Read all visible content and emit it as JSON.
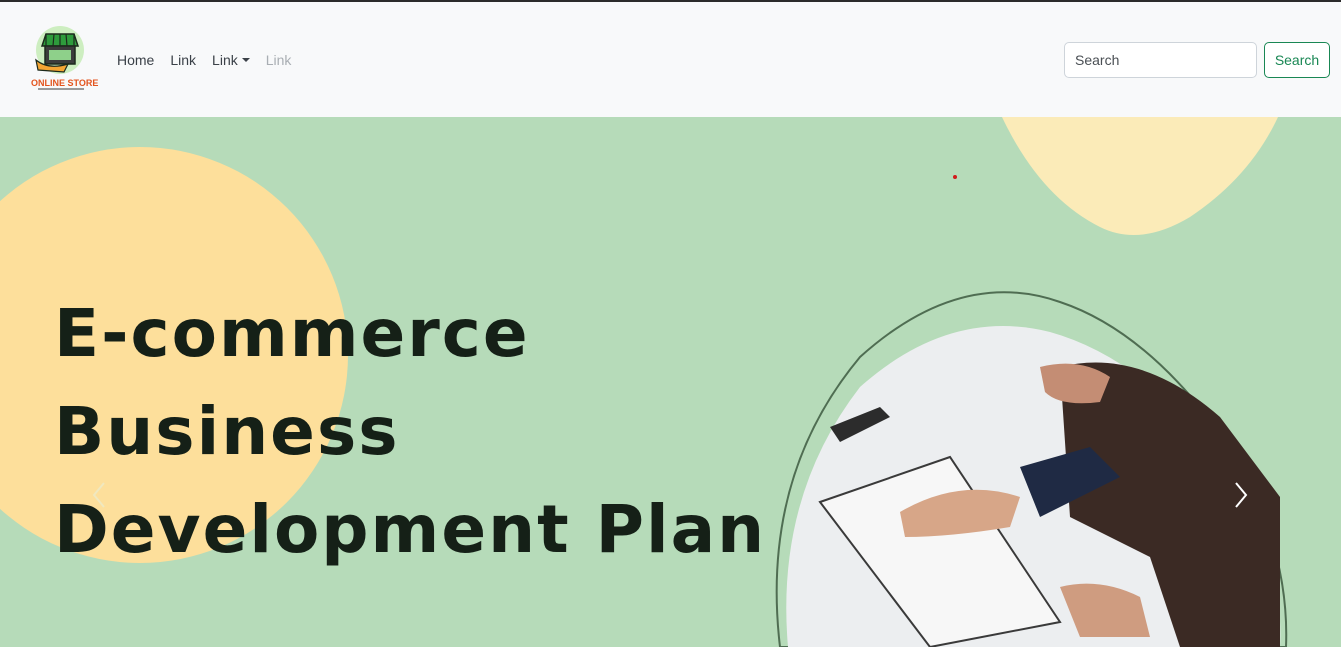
{
  "brand": {
    "name": "ONLINE STORE",
    "logo_icon": "storefront-icon"
  },
  "nav": {
    "items": [
      {
        "label": "Home",
        "state": "normal"
      },
      {
        "label": "Link",
        "state": "normal"
      },
      {
        "label": "Link",
        "state": "dropdown"
      },
      {
        "label": "Link",
        "state": "disabled"
      }
    ]
  },
  "search": {
    "placeholder": "Search",
    "button_label": "Search"
  },
  "carousel": {
    "slide_title_lines": [
      "E-commerce",
      "Business",
      "Development Plan"
    ],
    "prev_icon": "chevron-left-icon",
    "next_icon": "chevron-right-icon"
  },
  "colors": {
    "navbar_bg": "#f8f9fa",
    "search_button": "#198754",
    "slide_bg": "#b6dbb9",
    "slide_blob": "#fddf9b",
    "slide_text": "#152017"
  }
}
